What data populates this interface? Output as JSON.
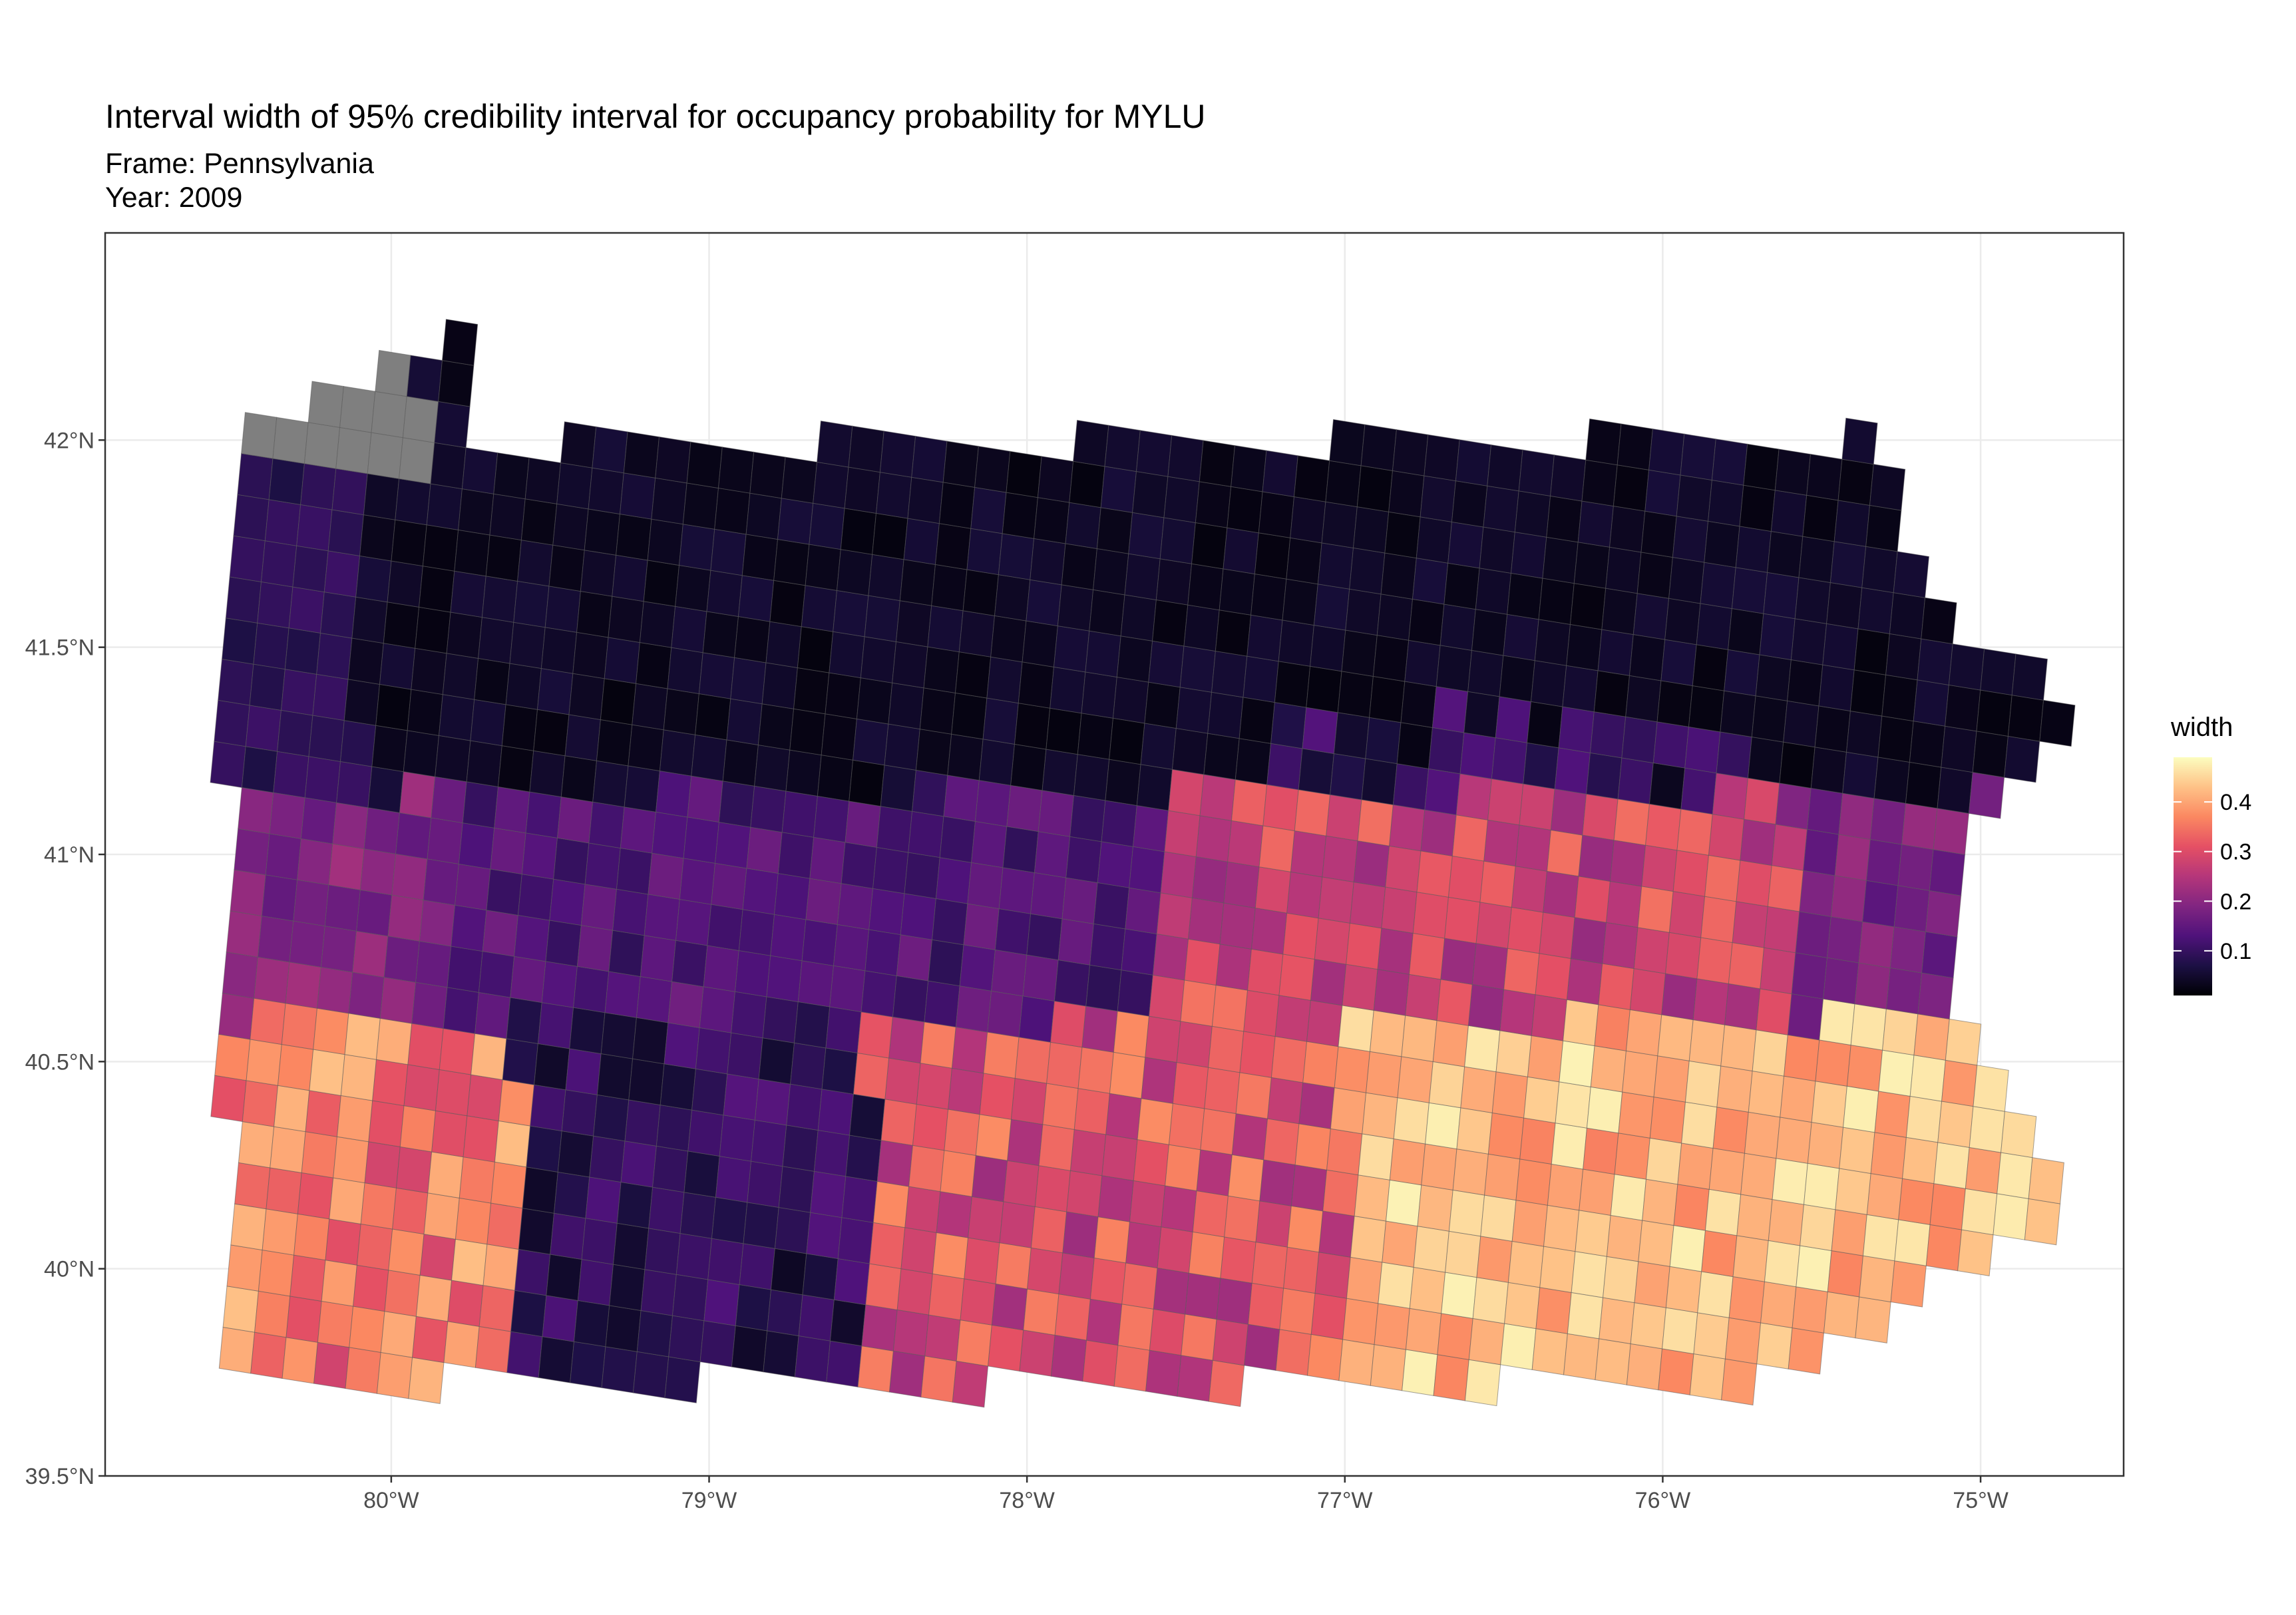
{
  "title": "Interval width of 95% credibility interval for occupancy probability for MYLU",
  "subtitle_frame": "Frame: Pennsylvania",
  "subtitle_year": "Year: 2009",
  "colors": {
    "na": "#7f7f7f",
    "grid": "#ebebeb",
    "border": "#333333",
    "palette": [
      "#000004",
      "#1c1044",
      "#4f127b",
      "#812581",
      "#b5367a",
      "#e55064",
      "#fb8861",
      "#fec287",
      "#fcfdbf"
    ]
  },
  "chart_data": {
    "type": "heatmap",
    "geometry": "grid cells over Pennsylvania",
    "value_name": "width",
    "xlim": [
      -80.9,
      -74.55
    ],
    "ylim": [
      39.5,
      42.5
    ],
    "x_ticks": [
      -80,
      -79,
      -78,
      -77,
      -76,
      -75
    ],
    "x_tick_labels": [
      "80°W",
      "79°W",
      "78°W",
      "77°W",
      "76°W",
      "75°W"
    ],
    "y_ticks": [
      39.5,
      40,
      40.5,
      41,
      41.5,
      42
    ],
    "y_tick_labels": [
      "39.5°N",
      "40°N",
      "40.5°N",
      "41°N",
      "41.5°N",
      "42°N"
    ],
    "legend": {
      "title": "width",
      "position": "right",
      "range": [
        0.01,
        0.49
      ],
      "ticks": [
        0.1,
        0.2,
        0.3,
        0.4
      ],
      "tick_labels": [
        "0.1",
        "0.2",
        "0.3",
        "0.4"
      ]
    },
    "na_color": "#7f7f7f",
    "cell_size_deg": 0.1,
    "grid_rotation_deg": -7,
    "regions": [
      {
        "band": "northern tier (about 41.1°N–42.0°N)",
        "approx_width": 0.03
      },
      {
        "band": "central belt (about 40.6°N–41.1°N, west)",
        "approx_width": 0.12
      },
      {
        "band": "southwest (about 39.7°N–40.5°N, 80.5°W–79.6°W)",
        "approx_width": 0.35
      },
      {
        "band": "south-central (about 39.7°N–40.6°N, 79.5°W–78.5°W)",
        "approx_width": 0.07
      },
      {
        "band": "south-central east (about 39.7°N–40.6°N, 78.5°W–77.0°W)",
        "approx_width": 0.3
      },
      {
        "band": "southeast (about 39.7°N–40.4°N, 77.0°W–74.9°W)",
        "approx_width": 0.43
      },
      {
        "band": "northwest corner / Lake Erie cells",
        "approx_width": "NA"
      }
    ]
  }
}
